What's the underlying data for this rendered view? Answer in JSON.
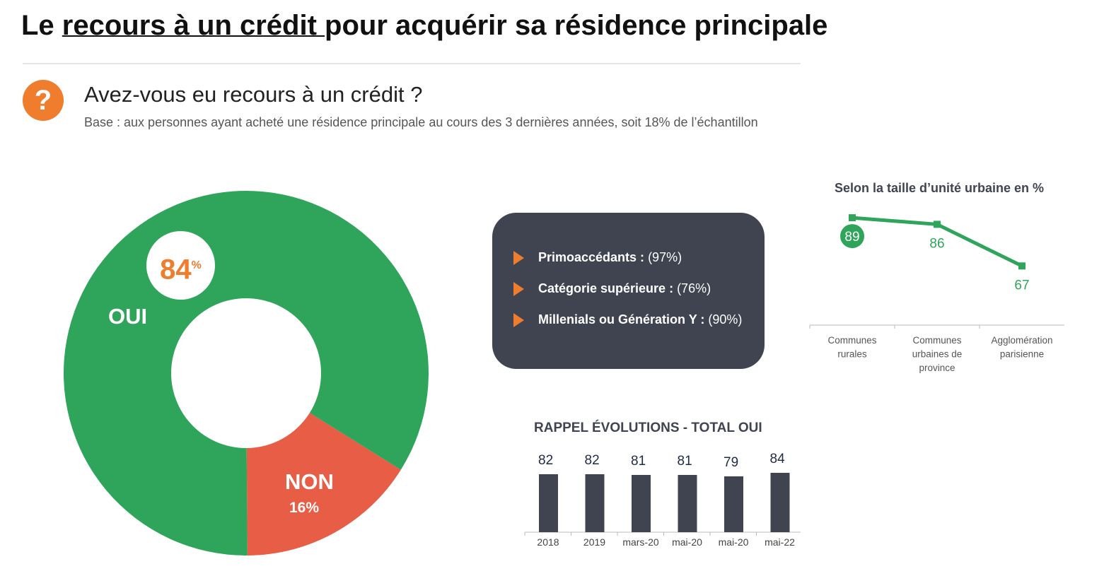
{
  "header": {
    "title_pre": "Le ",
    "title_link": "recours à un crédit ",
    "title_post": "pour acquérir sa résidence principale"
  },
  "question": {
    "icon": "question-icon",
    "icon_text": "?",
    "text": "Avez-vous eu recours à un crédit ?",
    "base": "Base : aux personnes ayant acheté une résidence principale au cours des 3 dernières années, soit 18% de l’échantillon"
  },
  "highlights": [
    {
      "label": "Primoaccédants :",
      "value": " (97%)"
    },
    {
      "label": "Catégorie supérieure :",
      "value": " (76%)"
    },
    {
      "label": "Millenials ou Génération Y  :",
      "value": " (90%)"
    }
  ],
  "colors": {
    "green": "#2ea55a",
    "red": "#e85d45",
    "orange": "#ef7d2d",
    "dark": "#3f4450"
  },
  "chart_data": [
    {
      "type": "pie",
      "title": "",
      "slices": [
        {
          "label": "OUI",
          "value": 84,
          "display": "84",
          "unit": "%",
          "color": "#2ea55a"
        },
        {
          "label": "NON",
          "value": 16,
          "display": "16%",
          "color": "#e85d45"
        }
      ]
    },
    {
      "type": "bar",
      "title": "RAPPEL ÉVOLUTIONS - TOTAL OUI",
      "categories": [
        "2018",
        "2019",
        "mars-20",
        "mai-20",
        "mai-20",
        "mai-22"
      ],
      "values": [
        82,
        82,
        81,
        81,
        79,
        84
      ],
      "ylim": [
        0,
        100
      ]
    },
    {
      "type": "line",
      "title": "Selon la taille d’unité urbaine en %",
      "categories": [
        "Communes rurales",
        "Communes urbaines de province",
        "Agglomération parisienne"
      ],
      "values": [
        89,
        86,
        67
      ],
      "ylim": [
        0,
        100
      ]
    }
  ]
}
